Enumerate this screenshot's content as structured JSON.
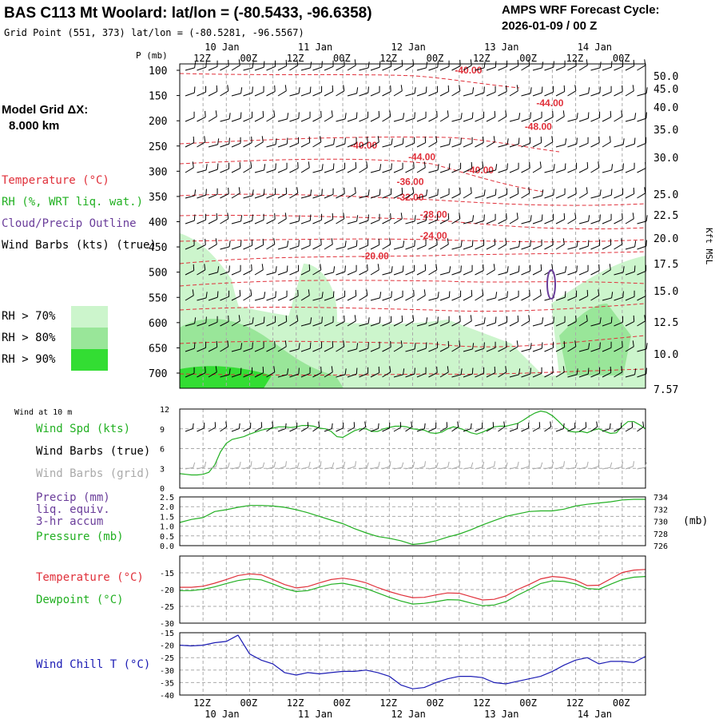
{
  "header": {
    "title": "BAS C113 Mt Woolard:  lat/lon = (-80.5433, -96.6358)",
    "subtitle": "Grid Point (551, 373) lat/lon = (-80.5281, -96.5567)",
    "cycle_label": "AMPS WRF Forecast Cycle:",
    "cycle_value": "2026-01-09 / 00  Z"
  },
  "sidebar": {
    "model_grid_label": "Model Grid ΔX:",
    "model_grid_value": "8.000 km",
    "legend_items": [
      {
        "label": "Temperature (°C)",
        "color": "#e0303a"
      },
      {
        "label": "RH (%, WRT liq. wat.)",
        "color": "#22b022"
      },
      {
        "label": "Cloud/Precip Outline",
        "color": "#6a3d9a"
      },
      {
        "label": "Wind Barbs (kts) (true)",
        "color": "#000000"
      }
    ],
    "rh_items": [
      {
        "label": "RH > 70%",
        "color": "#ccf5cc"
      },
      {
        "label": "RH > 80%",
        "color": "#99e699"
      },
      {
        "label": "RH > 90%",
        "color": "#33dd33"
      }
    ]
  },
  "time_axis": {
    "top_ticks": [
      "12Z",
      "00Z",
      "12Z",
      "00Z",
      "12Z",
      "00Z",
      "12Z",
      "00Z",
      "12Z",
      "00Z"
    ],
    "bottom_ticks": [
      "12Z",
      "00Z",
      "12Z",
      "00Z",
      "12Z",
      "00Z",
      "12Z",
      "00Z",
      "12Z",
      "00Z"
    ],
    "date_labels": [
      "10 Jan",
      "11 Jan",
      "12 Jan",
      "13 Jan",
      "14 Jan"
    ]
  },
  "chart_data": [
    {
      "type": "area",
      "name": "upper-air cross-section",
      "ylabel_left": "P (mb)",
      "ylabel_right": "Kft MSL",
      "pressure_ticks": [
        100,
        150,
        200,
        250,
        300,
        350,
        400,
        450,
        500,
        550,
        600,
        650,
        700
      ],
      "height_ticks": [
        "50.0",
        "45.0",
        "40.0",
        "35.0",
        "30.0",
        "25.0",
        "22.5",
        "20.0",
        "17.5",
        "15.0",
        "12.5",
        "10.0",
        "7.57"
      ],
      "ylim": [
        100,
        735
      ],
      "temperature_labels": [
        {
          "text": "-40.00",
          "t_hours": 150,
          "p": 100
        },
        {
          "text": "-44.00",
          "t_hours": 192,
          "p": 165
        },
        {
          "text": "-48.00",
          "t_hours": 186,
          "p": 212
        },
        {
          "text": "-40.00",
          "t_hours": 96,
          "p": 249
        },
        {
          "text": "-44.00",
          "t_hours": 126,
          "p": 272
        },
        {
          "text": "-40.00",
          "t_hours": 156,
          "p": 298
        },
        {
          "text": "-36.00",
          "t_hours": 120,
          "p": 321
        },
        {
          "text": "-32.00",
          "t_hours": 120,
          "p": 352
        },
        {
          "text": "-28.00",
          "t_hours": 132,
          "p": 386
        },
        {
          "text": "-24.00",
          "t_hours": 132,
          "p": 428
        },
        {
          "text": "-20.00",
          "t_hours": 102,
          "p": 468
        }
      ]
    },
    {
      "type": "line",
      "name": "Wind at 10 m",
      "ylim": [
        0,
        12
      ],
      "yticks": [
        0,
        3,
        6,
        9,
        12
      ],
      "legend": [
        "Wind Spd (kts)",
        "Wind Barbs (true)",
        "Wind Barbs (grid)"
      ],
      "x_hours": [
        0,
        3,
        6,
        9,
        12,
        15,
        18,
        21,
        24,
        27,
        30,
        33,
        36,
        39,
        42,
        45,
        48,
        51,
        54,
        57,
        60,
        63,
        66,
        69,
        72,
        75,
        78,
        81,
        84,
        87,
        90,
        93,
        96,
        99,
        102,
        105,
        108,
        111,
        114,
        117,
        120,
        123,
        126,
        129,
        132,
        135,
        138,
        141,
        144,
        147,
        150,
        153,
        156,
        159,
        162,
        165,
        168,
        171,
        174,
        177,
        180,
        183,
        186,
        189,
        192,
        195,
        198,
        201,
        204,
        207,
        210,
        213,
        216,
        219,
        222,
        225,
        228,
        231,
        234,
        237,
        240
      ],
      "series": [
        {
          "name": "Wind Spd (kts)",
          "color": "#22b022",
          "values": [
            2.2,
            2.1,
            2.0,
            2.0,
            2.1,
            2.4,
            3.5,
            5.5,
            6.8,
            7.4,
            7.6,
            7.8,
            8.2,
            8.5,
            8.8,
            9.0,
            9.1,
            9.3,
            9.3,
            9.2,
            9.3,
            9.5,
            9.5,
            9.4,
            9.1,
            9.0,
            8.6,
            7.8,
            7.7,
            8.2,
            8.7,
            9.0,
            9.0,
            8.6,
            8.6,
            9.0,
            9.2,
            9.4,
            9.4,
            9.3,
            9.0,
            8.9,
            8.8,
            8.4,
            8.3,
            8.5,
            9.0,
            9.3,
            9.1,
            8.8,
            8.4,
            8.2,
            8.5,
            8.9,
            9.3,
            9.4,
            9.4,
            9.6,
            9.8,
            10.3,
            10.9,
            11.4,
            11.7,
            11.5,
            11.0,
            10.2,
            9.3,
            8.6,
            8.5,
            8.6,
            8.4,
            8.8,
            9.0,
            8.6,
            8.3,
            8.4,
            9.4,
            10.1,
            10.1,
            9.6,
            9.0
          ]
        }
      ]
    },
    {
      "type": "line",
      "name": "Precip / Pressure",
      "legend": [
        "Precip (mm)",
        "liq. equiv.",
        "3-hr accum",
        "Pressure (mb)"
      ],
      "ylim_left": [
        0,
        2.5
      ],
      "yticks_left": [
        "0.0",
        "0.5",
        "1.0",
        "1.5",
        "2.0",
        "2.5"
      ],
      "ylim_right": [
        726,
        734
      ],
      "yticks_right": [
        726,
        728,
        730,
        732,
        734
      ],
      "right_unit": "(mb)",
      "x_hours": [
        0,
        6,
        12,
        18,
        24,
        30,
        36,
        42,
        48,
        54,
        60,
        66,
        72,
        78,
        84,
        90,
        96,
        102,
        108,
        114,
        120,
        126,
        132,
        138,
        144,
        150,
        156,
        162,
        168,
        174,
        180,
        186,
        192,
        198,
        204,
        210,
        216,
        222,
        228,
        234,
        240
      ],
      "series": [
        {
          "name": "Pressure (mb)",
          "color": "#22b022",
          "values": [
            729.8,
            730.3,
            730.6,
            731.6,
            731.9,
            732.3,
            732.6,
            732.6,
            732.5,
            732.3,
            731.9,
            731.4,
            730.8,
            730.2,
            729.6,
            728.8,
            728.1,
            727.5,
            727.2,
            726.8,
            726.2,
            726.4,
            726.8,
            727.4,
            727.9,
            728.6,
            729.4,
            730.1,
            730.8,
            731.2,
            731.6,
            731.7,
            731.7,
            732.0,
            732.5,
            732.8,
            733.0,
            733.2,
            733.5,
            733.6,
            733.6
          ]
        }
      ]
    },
    {
      "type": "line",
      "name": "Temperature / Dewpoint",
      "ylim": [
        -30,
        -10
      ],
      "yticks": [
        -30,
        -25,
        -20,
        -15
      ],
      "legend": [
        "Temperature (°C)",
        "Dewpoint (°C)"
      ],
      "x_hours": [
        0,
        6,
        12,
        18,
        24,
        30,
        36,
        42,
        48,
        54,
        60,
        66,
        72,
        78,
        84,
        90,
        96,
        102,
        108,
        114,
        120,
        126,
        132,
        138,
        144,
        150,
        156,
        162,
        168,
        174,
        180,
        186,
        192,
        198,
        204,
        210,
        216,
        222,
        228,
        234,
        240
      ],
      "series": [
        {
          "name": "Temperature (°C)",
          "color": "#e0303a",
          "values": [
            -19.3,
            -19.3,
            -19.0,
            -18.1,
            -17.0,
            -15.8,
            -15.3,
            -15.6,
            -17.0,
            -18.5,
            -19.5,
            -19.1,
            -18.0,
            -17.0,
            -16.6,
            -17.1,
            -18.0,
            -19.4,
            -20.6,
            -21.6,
            -22.4,
            -22.3,
            -21.6,
            -21.0,
            -21.1,
            -22.1,
            -23.1,
            -22.9,
            -21.9,
            -20.0,
            -18.5,
            -16.8,
            -16.1,
            -16.4,
            -17.2,
            -18.8,
            -18.7,
            -16.8,
            -14.9,
            -14.2,
            -14.0
          ]
        },
        {
          "name": "Dewpoint (°C)",
          "color": "#22b022",
          "values": [
            -20.3,
            -20.3,
            -19.9,
            -19.2,
            -18.2,
            -17.3,
            -16.8,
            -17.1,
            -18.3,
            -19.7,
            -20.6,
            -20.3,
            -19.3,
            -18.4,
            -18.1,
            -18.8,
            -19.7,
            -21.0,
            -22.3,
            -23.4,
            -24.3,
            -24.1,
            -23.6,
            -23.0,
            -23.1,
            -24.0,
            -24.8,
            -24.6,
            -23.6,
            -21.7,
            -20.0,
            -18.2,
            -17.4,
            -17.6,
            -18.3,
            -19.7,
            -19.9,
            -18.4,
            -17.0,
            -16.3,
            -16.1
          ]
        }
      ]
    },
    {
      "type": "line",
      "name": "Wind Chill",
      "ylim": [
        -40,
        -15
      ],
      "yticks": [
        -40,
        -35,
        -30,
        -25,
        -20,
        -15
      ],
      "legend": [
        "Wind Chill T (°C)"
      ],
      "x_hours": [
        0,
        6,
        12,
        18,
        24,
        30,
        36,
        42,
        48,
        54,
        60,
        66,
        72,
        78,
        84,
        90,
        96,
        102,
        108,
        114,
        120,
        126,
        132,
        138,
        144,
        150,
        156,
        162,
        168,
        174,
        180,
        186,
        192,
        198,
        204,
        210,
        216,
        222,
        228,
        234,
        240
      ],
      "series": [
        {
          "name": "Wind Chill T (°C)",
          "color": "#1c1cb4",
          "values": [
            -20,
            -20.3,
            -20,
            -19,
            -18.5,
            -16,
            -23.5,
            -26,
            -27.5,
            -31,
            -32,
            -31,
            -31.5,
            -31,
            -30.5,
            -30.5,
            -30,
            -31,
            -32.5,
            -36,
            -37.5,
            -37,
            -35,
            -33.5,
            -32.5,
            -32.5,
            -33,
            -35,
            -35.5,
            -34.5,
            -33.5,
            -32.5,
            -30.5,
            -28,
            -26,
            -25,
            -27.5,
            -26.5,
            -26.5,
            -27,
            -24.5
          ]
        }
      ]
    }
  ]
}
